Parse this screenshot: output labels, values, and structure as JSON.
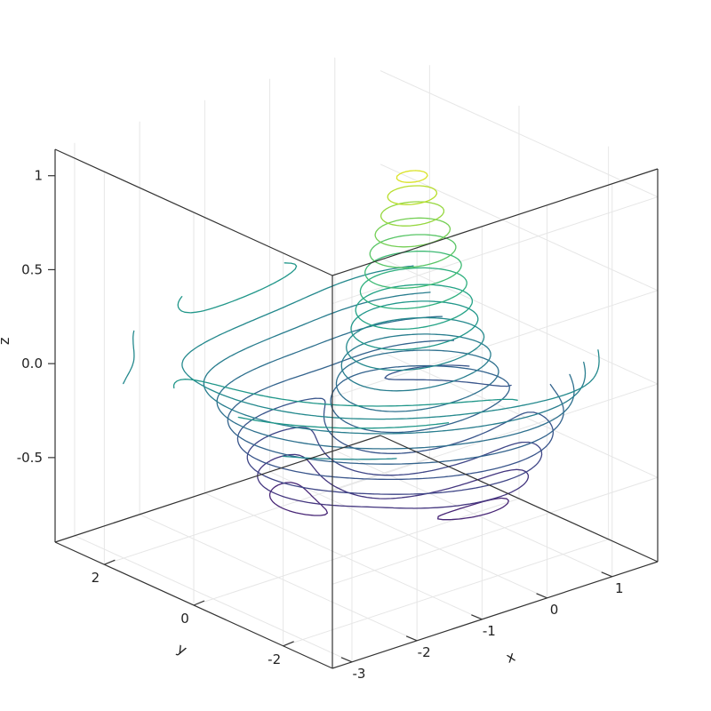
{
  "chart_data": {
    "type": "line",
    "subtype": "3d-contour",
    "title": "",
    "axes": {
      "x": {
        "label": "x",
        "ticks": [
          -3,
          -2,
          -1,
          0,
          1
        ],
        "range": [
          -3.3,
          1.7
        ]
      },
      "y": {
        "label": "y",
        "ticks": [
          -2,
          0,
          2
        ],
        "range": [
          -3.1,
          3.1
        ]
      },
      "z": {
        "label": "z",
        "ticks": [
          -0.5,
          0.0,
          0.5,
          1.0
        ],
        "range": [
          -0.95,
          1.15
        ]
      }
    },
    "grid": true,
    "colormap": "viridis",
    "contour_levels": [
      -0.85,
      -0.75,
      -0.65,
      -0.55,
      -0.45,
      -0.35,
      -0.25,
      -0.15,
      -0.05,
      0.05,
      0.15,
      0.25,
      0.35,
      0.45,
      0.55,
      0.65,
      0.75,
      0.85,
      0.95,
      1.05
    ]
  }
}
